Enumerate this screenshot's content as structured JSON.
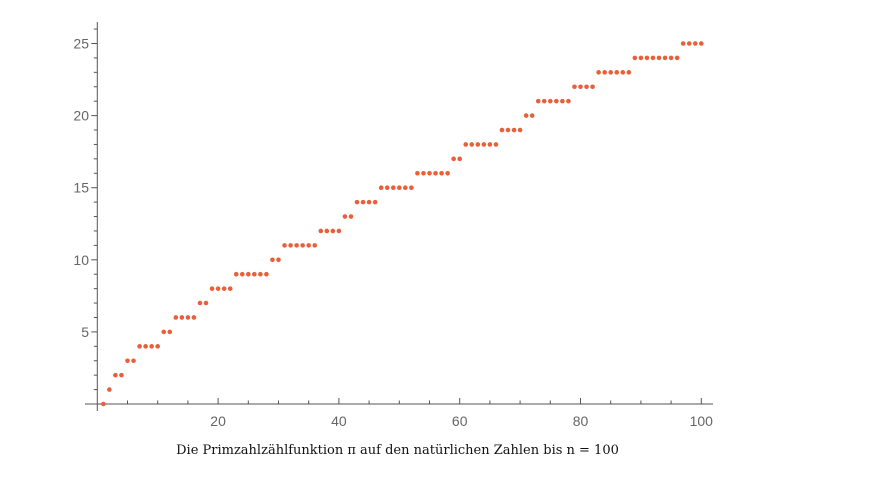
{
  "chart_data": {
    "type": "scatter",
    "title": "",
    "caption": "Die Primzahlzählfunktion π auf den natürlichen Zahlen bis n = 100",
    "xlabel": "",
    "ylabel": "",
    "xlim": [
      0,
      100
    ],
    "ylim": [
      0,
      25
    ],
    "x_ticks": [
      20,
      40,
      60,
      80,
      100
    ],
    "y_ticks": [
      5,
      10,
      15,
      20,
      25
    ],
    "grid": false,
    "point_color": "#e8603a",
    "axis_color": "#555555",
    "x": "n = 1..100",
    "points_rule": "pi(n) for n = 1..100",
    "y": [
      0,
      1,
      2,
      2,
      3,
      3,
      4,
      4,
      4,
      4,
      5,
      5,
      6,
      6,
      6,
      6,
      7,
      7,
      8,
      8,
      8,
      8,
      9,
      9,
      9,
      9,
      9,
      9,
      10,
      10,
      11,
      11,
      11,
      11,
      11,
      11,
      12,
      12,
      12,
      12,
      13,
      13,
      14,
      14,
      14,
      14,
      15,
      15,
      15,
      15,
      15,
      15,
      16,
      16,
      16,
      16,
      16,
      16,
      17,
      17,
      18,
      18,
      18,
      18,
      18,
      18,
      19,
      19,
      19,
      19,
      20,
      20,
      21,
      21,
      21,
      21,
      21,
      21,
      22,
      22,
      22,
      22,
      23,
      23,
      23,
      23,
      23,
      23,
      24,
      24,
      24,
      24,
      24,
      24,
      24,
      24,
      25,
      25,
      25,
      25
    ]
  }
}
